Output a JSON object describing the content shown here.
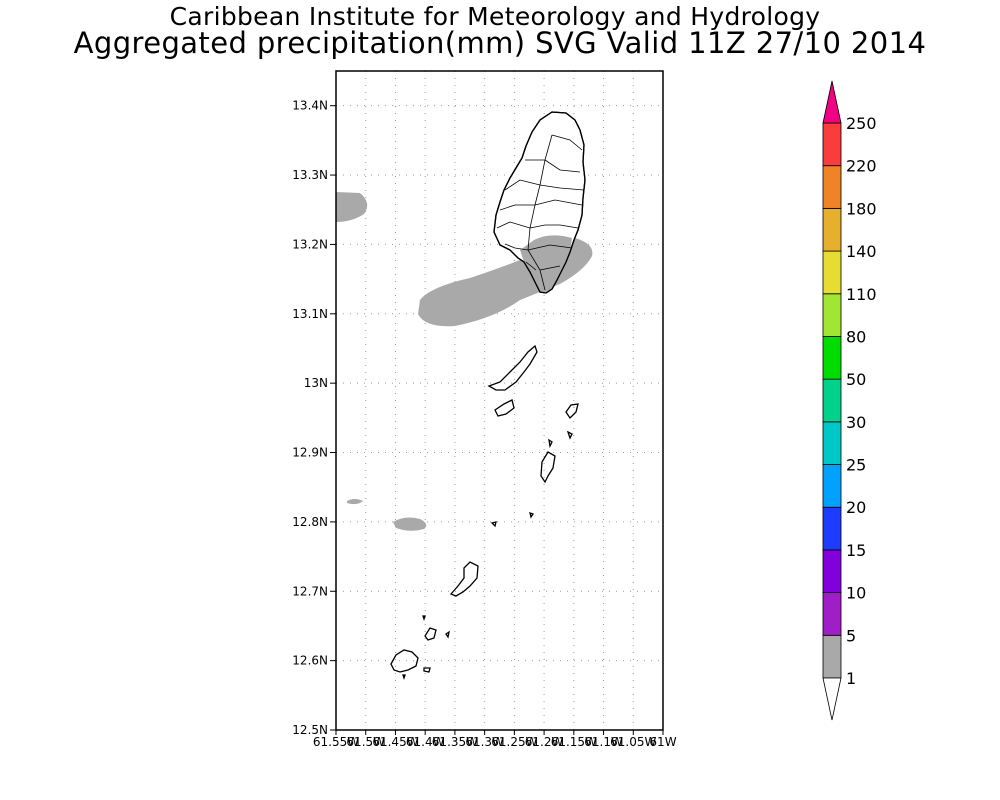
{
  "header": {
    "institute": "Caribbean Institute for Meteorology and Hydrology",
    "product": "Aggregated precipitation(mm) SVG Valid 11Z 27/10 2014"
  },
  "map": {
    "lat_range": [
      12.5,
      13.45
    ],
    "lon_range": [
      -61.55,
      -61.0
    ],
    "lat_ticks": [
      "13.4N",
      "13.3N",
      "13.2N",
      "13.1N",
      "13N",
      "12.9N",
      "12.8N",
      "12.7N",
      "12.6N",
      "12.5N"
    ],
    "lon_ticks": [
      "61.55W",
      "61.5W",
      "61.45W",
      "61.4W",
      "61.35W",
      "61.3W",
      "61.25W",
      "61.2W",
      "61.15W",
      "61.1W",
      "61.05W",
      "61W"
    ],
    "grid": "dotted"
  },
  "colorbar": {
    "levels": [
      "1",
      "5",
      "10",
      "15",
      "20",
      "25",
      "30",
      "50",
      "80",
      "110",
      "140",
      "180",
      "220",
      "250"
    ],
    "colors": [
      "#a9a9a9",
      "#a01ec8",
      "#8200dc",
      "#1e3cff",
      "#00a0ff",
      "#00c8c8",
      "#00d28c",
      "#00dc00",
      "#a0e632",
      "#e6dc32",
      "#e6af2d",
      "#f08228",
      "#fa3c3c",
      "#f00082"
    ],
    "below_color": "#ffffff",
    "above_color": "#f00082"
  },
  "precip_fill_color": "#a9a9a9"
}
